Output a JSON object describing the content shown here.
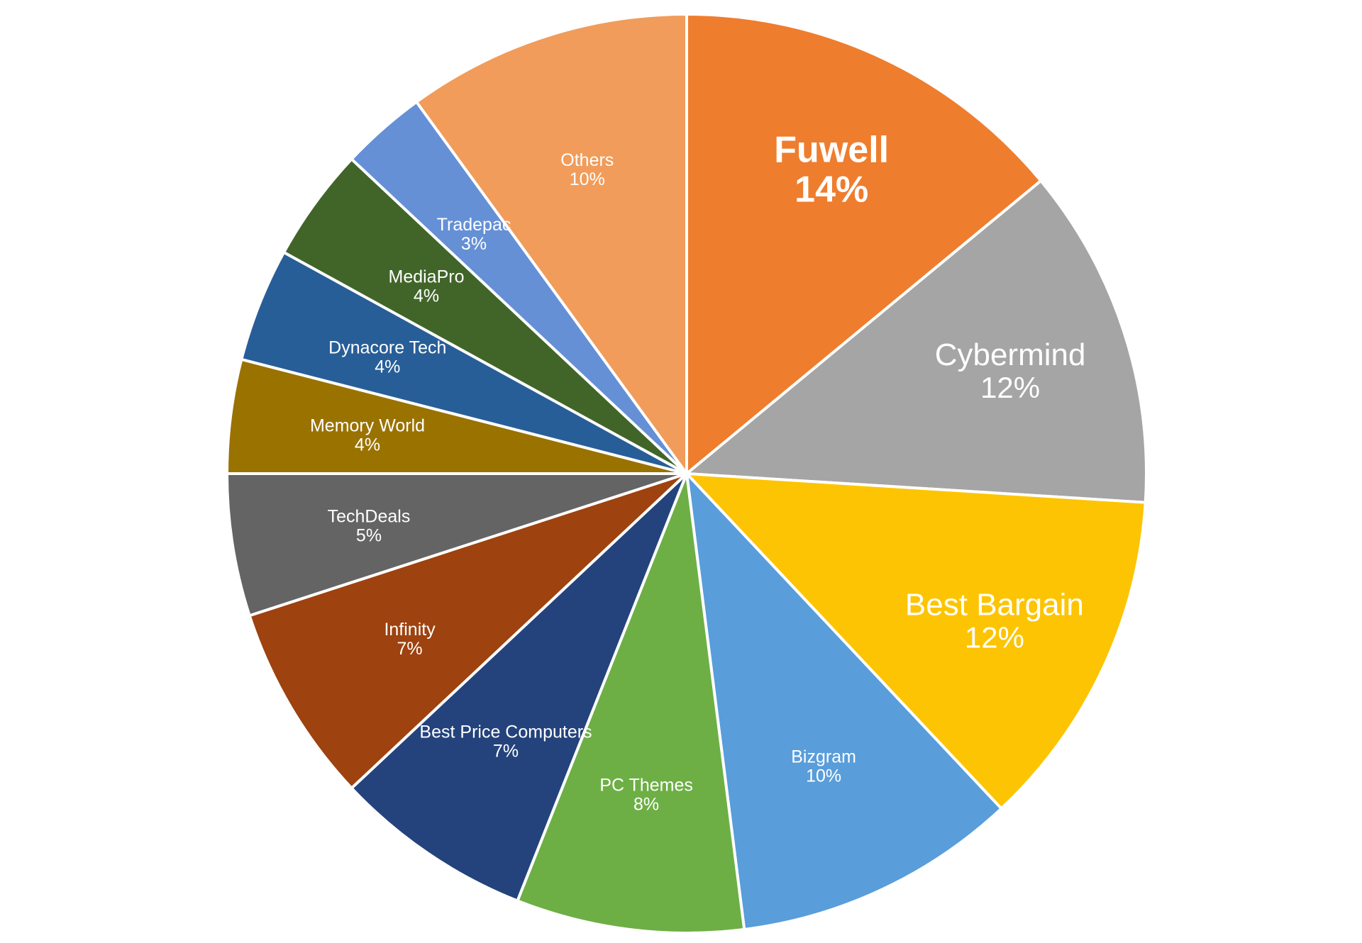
{
  "chart_data": {
    "type": "pie",
    "start_angle_deg": 0,
    "direction": "clockwise",
    "slices": [
      {
        "name": "Fuwell",
        "value": 14,
        "label": "14%",
        "color": "#EF7D2E",
        "emphasis": true
      },
      {
        "name": "Cybermind",
        "value": 12,
        "label": "12%",
        "color": "#A5A5A5"
      },
      {
        "name": "Best Bargain",
        "value": 12,
        "label": "12%",
        "color": "#FDC403"
      },
      {
        "name": "Bizgram",
        "value": 10,
        "label": "10%",
        "color": "#599DDA"
      },
      {
        "name": "PC Themes",
        "value": 8,
        "label": "8%",
        "color": "#6DAF45"
      },
      {
        "name": "Best Price Computers",
        "value": 7,
        "label": "7%",
        "color": "#24437C"
      },
      {
        "name": "Infinity",
        "value": 7,
        "label": "7%",
        "color": "#9E420F"
      },
      {
        "name": "TechDeals",
        "value": 5,
        "label": "5%",
        "color": "#646464"
      },
      {
        "name": "Memory World",
        "value": 4,
        "label": "4%",
        "color": "#9A7200"
      },
      {
        "name": "Dynacore Tech",
        "value": 4,
        "label": "4%",
        "color": "#285E98"
      },
      {
        "name": "MediaPro",
        "value": 4,
        "label": "4%",
        "color": "#416529"
      },
      {
        "name": "Tradepac",
        "value": 3,
        "label": "3%",
        "color": "#6590D6"
      },
      {
        "name": "Others",
        "value": 10,
        "label": "10%",
        "color": "#F19C5A"
      }
    ]
  }
}
